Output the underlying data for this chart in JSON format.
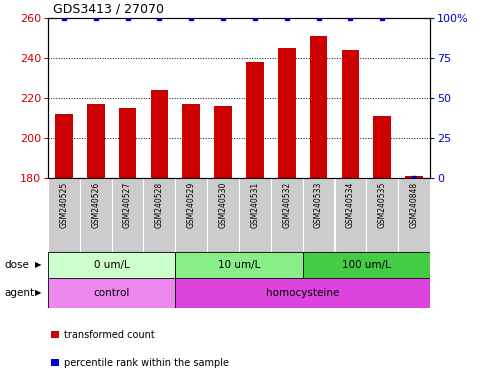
{
  "title": "GDS3413 / 27070",
  "samples": [
    "GSM240525",
    "GSM240526",
    "GSM240527",
    "GSM240528",
    "GSM240529",
    "GSM240530",
    "GSM240531",
    "GSM240532",
    "GSM240533",
    "GSM240534",
    "GSM240535",
    "GSM240848"
  ],
  "red_values": [
    212,
    217,
    215,
    224,
    217,
    216,
    238,
    245,
    251,
    244,
    211,
    181
  ],
  "blue_values": [
    100,
    100,
    100,
    100,
    100,
    100,
    100,
    100,
    100,
    100,
    100,
    0
  ],
  "ylim_left": [
    180,
    260
  ],
  "ylim_right": [
    0,
    100
  ],
  "yticks_left": [
    180,
    200,
    220,
    240,
    260
  ],
  "yticks_right": [
    0,
    25,
    50,
    75,
    100
  ],
  "ytick_labels_right": [
    "0",
    "25",
    "50",
    "75",
    "100%"
  ],
  "dose_groups": [
    {
      "label": "0 um/L",
      "start": 0,
      "end": 4,
      "color": "#ccffcc"
    },
    {
      "label": "10 um/L",
      "start": 4,
      "end": 8,
      "color": "#88ee88"
    },
    {
      "label": "100 um/L",
      "start": 8,
      "end": 12,
      "color": "#44cc44"
    }
  ],
  "agent_groups": [
    {
      "label": "control",
      "start": 0,
      "end": 4,
      "color": "#ee88ee"
    },
    {
      "label": "homocysteine",
      "start": 4,
      "end": 12,
      "color": "#dd44dd"
    }
  ],
  "bar_color": "#cc0000",
  "dot_color": "#0000cc",
  "bar_width": 0.55,
  "label_color_left": "#cc0000",
  "label_color_right": "#0000cc",
  "background_sample": "#cccccc",
  "legend_red": "transformed count",
  "legend_blue": "percentile rank within the sample"
}
